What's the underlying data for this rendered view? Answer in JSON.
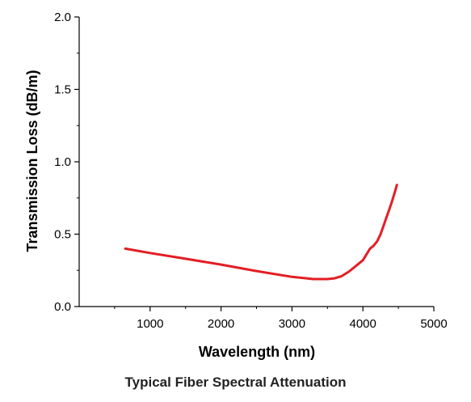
{
  "chart_data": {
    "type": "line",
    "title": "",
    "caption": "Typical Fiber Spectral Attenuation",
    "xlabel": "Wavelength (nm)",
    "ylabel": "Transmission Loss (dB/m)",
    "xlim": [
      0,
      5000
    ],
    "ylim": [
      0.0,
      2.0
    ],
    "x_ticks": [
      1000,
      2000,
      3000,
      4000,
      5000
    ],
    "x_tick_labels": [
      "1000",
      "2000",
      "3000",
      "4000",
      "5000"
    ],
    "y_ticks": [
      0.0,
      0.5,
      1.0,
      1.5,
      2.0
    ],
    "y_tick_labels": [
      "0.0",
      "0.5",
      "1.0",
      "1.5",
      "2.0"
    ],
    "grid": false,
    "series_color": "#e31e24",
    "series": [
      {
        "x": [
          650,
          1000,
          1500,
          2000,
          2500,
          3000,
          3300,
          3500,
          3600,
          3700,
          3800,
          3900,
          4000,
          4050,
          4100,
          4150,
          4200,
          4250,
          4300,
          4350,
          4400,
          4450,
          4480
        ],
        "y": [
          0.4,
          0.37,
          0.33,
          0.29,
          0.245,
          0.205,
          0.19,
          0.19,
          0.195,
          0.21,
          0.24,
          0.28,
          0.32,
          0.36,
          0.4,
          0.42,
          0.45,
          0.5,
          0.57,
          0.64,
          0.71,
          0.79,
          0.84
        ]
      }
    ]
  }
}
